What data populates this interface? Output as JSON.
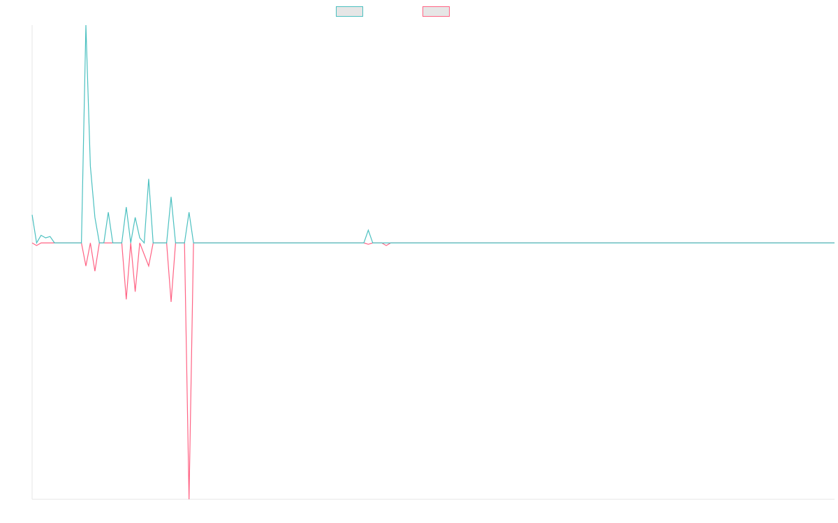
{
  "chart_data": {
    "type": "line",
    "title": "",
    "xlabel": "",
    "ylabel": "",
    "grid": false,
    "legend_position": "top-center",
    "x_count": 180,
    "ylim": [
      -100,
      85
    ],
    "series": [
      {
        "name": "",
        "color": "#4bc0c0",
        "points": [
          [
            0,
            11
          ],
          [
            1,
            0
          ],
          [
            2,
            3
          ],
          [
            3,
            2
          ],
          [
            4,
            2.5
          ],
          [
            5,
            0
          ],
          [
            11,
            0
          ],
          [
            12,
            85
          ],
          [
            13,
            30
          ],
          [
            14,
            10
          ],
          [
            15,
            0
          ],
          [
            16,
            0
          ],
          [
            17,
            12
          ],
          [
            18,
            0
          ],
          [
            20,
            0
          ],
          [
            21,
            14
          ],
          [
            22,
            0
          ],
          [
            23,
            10
          ],
          [
            24,
            2
          ],
          [
            25,
            0
          ],
          [
            26,
            25
          ],
          [
            27,
            0
          ],
          [
            30,
            0
          ],
          [
            31,
            18
          ],
          [
            32,
            0
          ],
          [
            34,
            0
          ],
          [
            35,
            12
          ],
          [
            36,
            0
          ],
          [
            74,
            0
          ],
          [
            75,
            5
          ],
          [
            76,
            0
          ],
          [
            179,
            0
          ]
        ]
      },
      {
        "name": "",
        "color": "#ff6384",
        "points": [
          [
            0,
            0
          ],
          [
            1,
            -1
          ],
          [
            2,
            0
          ],
          [
            11,
            0
          ],
          [
            12,
            -9
          ],
          [
            13,
            0
          ],
          [
            14,
            -11
          ],
          [
            15,
            0
          ],
          [
            20,
            0
          ],
          [
            21,
            -22
          ],
          [
            22,
            0
          ],
          [
            23,
            -19
          ],
          [
            24,
            0
          ],
          [
            26,
            -9
          ],
          [
            27,
            0
          ],
          [
            30,
            0
          ],
          [
            31,
            -23
          ],
          [
            32,
            0
          ],
          [
            34,
            0
          ],
          [
            35,
            -100
          ],
          [
            36,
            0
          ],
          [
            74,
            0
          ],
          [
            75,
            -0.5
          ],
          [
            76,
            0
          ],
          [
            78,
            0
          ],
          [
            79,
            -1
          ],
          [
            80,
            0
          ],
          [
            179,
            0
          ]
        ]
      }
    ]
  }
}
